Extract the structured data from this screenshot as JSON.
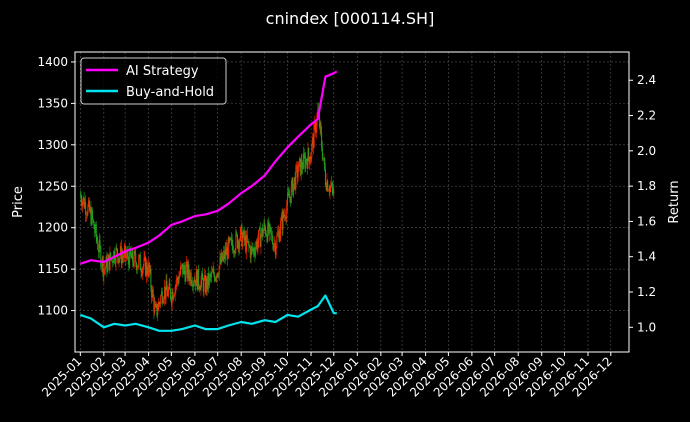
{
  "chart_data": {
    "type": "line",
    "title": "cnindex [000114.SH]",
    "xlabel": "",
    "ylabel": "Price",
    "y2label": "Return",
    "ylim": [
      1050,
      1412
    ],
    "y2lim": [
      0.86,
      2.56
    ],
    "xlim": [
      "2024-12-25",
      "2026-12-25"
    ],
    "y_ticks": [
      1100,
      1150,
      1200,
      1250,
      1300,
      1350,
      1400
    ],
    "y2_ticks": [
      1.0,
      1.2,
      1.4,
      1.6,
      1.8,
      2.0,
      2.2,
      2.4
    ],
    "x_ticks": [
      "2025-01",
      "2025-02",
      "2025-03",
      "2025-04",
      "2025-05",
      "2025-06",
      "2025-07",
      "2025-08",
      "2025-09",
      "2025-10",
      "2025-11",
      "2025-12",
      "2026-01",
      "2026-02",
      "2026-03",
      "2026-04",
      "2026-05",
      "2026-06",
      "2026-07",
      "2026-08",
      "2026-09",
      "2026-10",
      "2026-11",
      "2026-12"
    ],
    "grid": true,
    "legend_position": "top-left",
    "background": "#000000",
    "candle_up_color": "#ff2a00",
    "candle_down_color": "#1fa51f",
    "price_candles": {
      "x": [
        "2025-01-01",
        "2025-01-15",
        "2025-02-01",
        "2025-02-15",
        "2025-03-01",
        "2025-03-15",
        "2025-04-01",
        "2025-04-10",
        "2025-04-20",
        "2025-05-01",
        "2025-05-15",
        "2025-06-01",
        "2025-06-15",
        "2025-07-01",
        "2025-07-15",
        "2025-08-01",
        "2025-08-15",
        "2025-09-01",
        "2025-09-15",
        "2025-10-01",
        "2025-10-15",
        "2025-11-01",
        "2025-11-10",
        "2025-11-20",
        "2025-12-01"
      ],
      "close": [
        1240,
        1215,
        1150,
        1170,
        1165,
        1160,
        1150,
        1095,
        1125,
        1120,
        1150,
        1140,
        1130,
        1150,
        1175,
        1190,
        1170,
        1200,
        1180,
        1230,
        1270,
        1290,
        1340,
        1260,
        1240
      ]
    },
    "series": [
      {
        "name": "AI Strategy",
        "axis": "right",
        "color": "#ff00ff",
        "x": [
          "2025-01-01",
          "2025-01-15",
          "2025-02-01",
          "2025-02-15",
          "2025-03-01",
          "2025-03-15",
          "2025-04-01",
          "2025-04-15",
          "2025-05-01",
          "2025-05-15",
          "2025-06-01",
          "2025-06-15",
          "2025-07-01",
          "2025-07-15",
          "2025-08-01",
          "2025-08-15",
          "2025-09-01",
          "2025-09-15",
          "2025-10-01",
          "2025-10-15",
          "2025-11-01",
          "2025-11-10",
          "2025-11-20",
          "2025-12-01",
          "2025-12-05"
        ],
        "values": [
          1.36,
          1.38,
          1.37,
          1.4,
          1.43,
          1.45,
          1.48,
          1.52,
          1.58,
          1.6,
          1.63,
          1.64,
          1.66,
          1.7,
          1.76,
          1.8,
          1.86,
          1.94,
          2.02,
          2.08,
          2.15,
          2.18,
          2.42,
          2.44,
          2.45
        ]
      },
      {
        "name": "Buy-and-Hold",
        "axis": "right",
        "color": "#00e5ee",
        "x": [
          "2025-01-01",
          "2025-01-15",
          "2025-02-01",
          "2025-02-15",
          "2025-03-01",
          "2025-03-15",
          "2025-04-01",
          "2025-04-15",
          "2025-05-01",
          "2025-05-15",
          "2025-06-01",
          "2025-06-15",
          "2025-07-01",
          "2025-07-15",
          "2025-08-01",
          "2025-08-15",
          "2025-09-01",
          "2025-09-15",
          "2025-10-01",
          "2025-10-15",
          "2025-11-01",
          "2025-11-10",
          "2025-11-20",
          "2025-12-01",
          "2025-12-05"
        ],
        "values": [
          1.07,
          1.05,
          1.0,
          1.02,
          1.01,
          1.02,
          1.0,
          0.98,
          0.98,
          0.99,
          1.01,
          0.99,
          0.99,
          1.01,
          1.03,
          1.02,
          1.04,
          1.03,
          1.07,
          1.06,
          1.1,
          1.12,
          1.18,
          1.08,
          1.08
        ]
      }
    ]
  }
}
